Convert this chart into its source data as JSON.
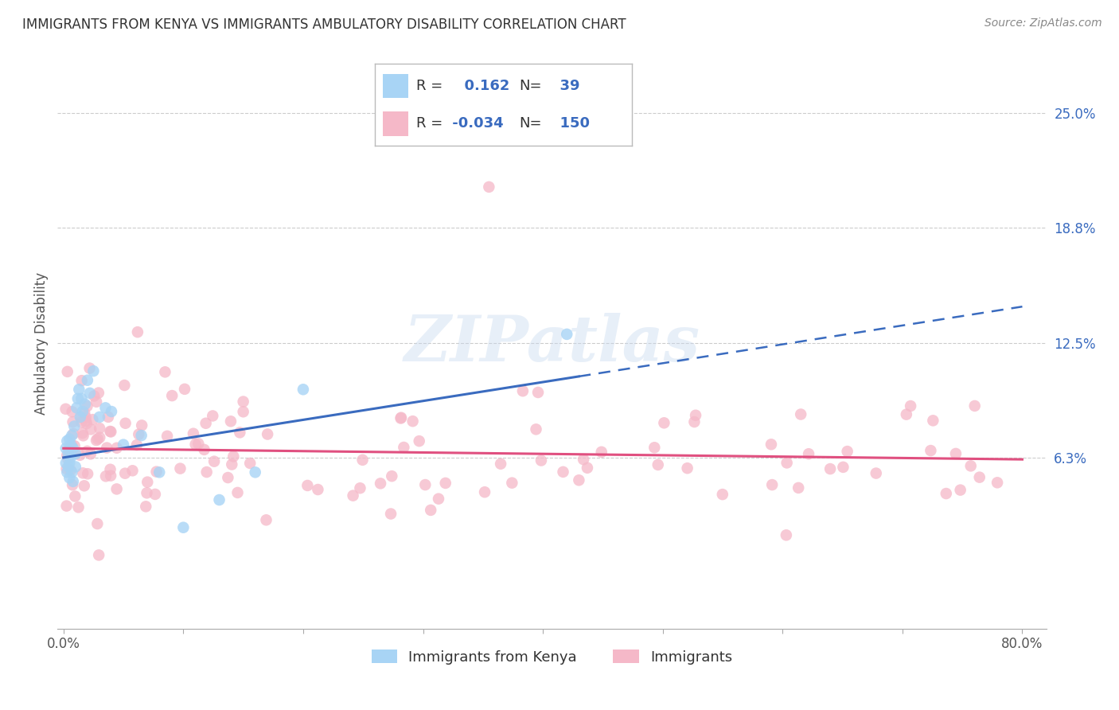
{
  "title": "IMMIGRANTS FROM KENYA VS IMMIGRANTS AMBULATORY DISABILITY CORRELATION CHART",
  "source": "Source: ZipAtlas.com",
  "xlabel_blue": "Immigrants from Kenya",
  "xlabel_pink": "Immigrants",
  "ylabel": "Ambulatory Disability",
  "R_blue": 0.162,
  "N_blue": 39,
  "R_pink": -0.034,
  "N_pink": 150,
  "xlim": [
    -0.005,
    0.82
  ],
  "ylim": [
    -0.03,
    0.28
  ],
  "yticks": [
    0.063,
    0.125,
    0.188,
    0.25
  ],
  "ytick_labels": [
    "6.3%",
    "12.5%",
    "18.8%",
    "25.0%"
  ],
  "xticks": [
    0.0,
    0.1,
    0.2,
    0.3,
    0.4,
    0.5,
    0.6,
    0.7,
    0.8
  ],
  "xtick_labels": [
    "0.0%",
    "",
    "",
    "",
    "",
    "",
    "",
    "",
    "80.0%"
  ],
  "color_blue": "#a8d4f5",
  "color_pink": "#f5b8c8",
  "line_blue": "#3a6bbf",
  "line_pink": "#e05080",
  "watermark": "ZIPatlas",
  "blue_scatter_seed": 42,
  "pink_scatter_seed": 77,
  "legend_text_color": "#3a6bbf",
  "title_fontsize": 12,
  "tick_fontsize": 12,
  "ylabel_fontsize": 12
}
